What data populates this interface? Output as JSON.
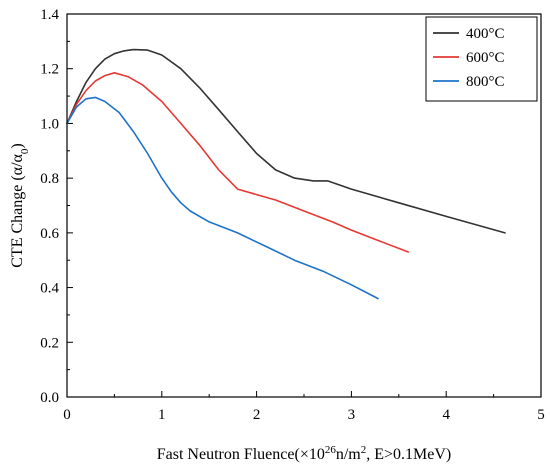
{
  "chart_data": {
    "type": "line",
    "xlabel": {
      "prefix": "Fast Neutron Fluence(×10",
      "exp": "26",
      "mid": "n/m",
      "exp2": "2",
      "suffix": ", E>0.1MeV)"
    },
    "ylabel": {
      "prefix": "CTE Change (α/α",
      "sub": "0",
      "suffix": ")"
    },
    "xlim": [
      0,
      5
    ],
    "ylim": [
      0.0,
      1.4
    ],
    "x_ticks": [
      "0",
      "1",
      "2",
      "3",
      "4",
      "5"
    ],
    "y_ticks": [
      "0.0",
      "0.2",
      "0.4",
      "0.6",
      "0.8",
      "1.0",
      "1.2",
      "1.4"
    ],
    "legend_position": "top-right",
    "series": [
      {
        "name": "400°C",
        "color": "#333333",
        "x": [
          0,
          0.1,
          0.2,
          0.3,
          0.4,
          0.5,
          0.6,
          0.7,
          0.85,
          1.0,
          1.2,
          1.4,
          1.6,
          1.8,
          2.0,
          2.2,
          2.4,
          2.6,
          2.75,
          3.0,
          3.5,
          4.0,
          4.62
        ],
        "y": [
          1.0,
          1.08,
          1.15,
          1.2,
          1.235,
          1.255,
          1.265,
          1.27,
          1.268,
          1.25,
          1.2,
          1.13,
          1.05,
          0.97,
          0.89,
          0.83,
          0.8,
          0.79,
          0.79,
          0.76,
          0.71,
          0.66,
          0.6
        ]
      },
      {
        "name": "600°C",
        "color": "#e53935",
        "x": [
          0,
          0.1,
          0.2,
          0.3,
          0.4,
          0.5,
          0.65,
          0.8,
          1.0,
          1.2,
          1.4,
          1.6,
          1.8,
          2.0,
          2.2,
          2.5,
          2.8,
          3.0,
          3.3,
          3.6
        ],
        "y": [
          1.0,
          1.07,
          1.12,
          1.155,
          1.175,
          1.185,
          1.17,
          1.14,
          1.08,
          1.0,
          0.92,
          0.83,
          0.76,
          0.74,
          0.72,
          0.68,
          0.64,
          0.61,
          0.57,
          0.53
        ]
      },
      {
        "name": "800°C",
        "color": "#1e73c8",
        "x": [
          0,
          0.1,
          0.2,
          0.3,
          0.4,
          0.55,
          0.7,
          0.85,
          1.0,
          1.1,
          1.2,
          1.3,
          1.5,
          1.8,
          2.1,
          2.4,
          2.7,
          3.0,
          3.28
        ],
        "y": [
          1.0,
          1.06,
          1.09,
          1.095,
          1.08,
          1.04,
          0.97,
          0.89,
          0.8,
          0.75,
          0.71,
          0.68,
          0.64,
          0.6,
          0.55,
          0.5,
          0.46,
          0.41,
          0.36
        ]
      }
    ]
  }
}
